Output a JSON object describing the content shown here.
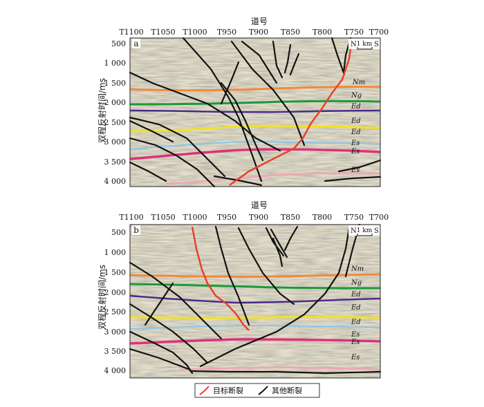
{
  "trace_axis_label": "道号",
  "time_axis_label": "双程反射时间/ms",
  "trace_ticks": [
    "T1100",
    "T1050",
    "T1000",
    "T950",
    "T900",
    "T850",
    "T800",
    "T750",
    "T700"
  ],
  "time_ticks": [
    "500",
    "1 000",
    "1 500",
    "2 000",
    "2 500",
    "3 000",
    "3 500",
    "4 000"
  ],
  "compass": {
    "north": "N",
    "south": "S",
    "scale": "1 km"
  },
  "colors": {
    "target_fault": "#e8402a",
    "other_fault": "#111111",
    "Nm": "#f08a3c",
    "Ng": "#1a9a3a",
    "Ed_top": "#4b2a8a",
    "Ed_mid": "#f2e21e",
    "Es_upper": "#8cc6ea",
    "Es_mid": "#e0307a",
    "Es_lower": "#f4a4b4"
  },
  "panels": [
    {
      "id": "a",
      "label": "a",
      "horizon_labels": [
        "Nm",
        "Ng",
        "Ed",
        "Ed",
        "Ed",
        "Es",
        "Es",
        "Es"
      ]
    },
    {
      "id": "b",
      "label": "b",
      "horizon_labels": [
        "Nm",
        "Ng",
        "Ed",
        "Ed",
        "Ed",
        "Es",
        "Es",
        "Es"
      ]
    }
  ],
  "legend": {
    "target": "目标断裂",
    "other": "其他断裂"
  }
}
